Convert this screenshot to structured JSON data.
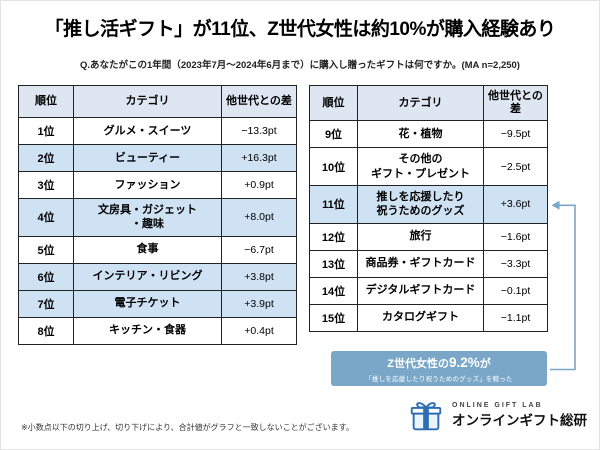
{
  "title": "「推し活ギフト」が11位、Z世代女性は約10%が購入経験あり",
  "subtitle": "Q.あなたがこの1年間（2023年7月～2024年6月まで）に購入し贈ったギフトは何ですか。(MA n=2,250)",
  "chart_data": {
    "type": "table",
    "columns": [
      "順位",
      "カテゴリ",
      "他世代との差"
    ],
    "left_rows": [
      {
        "rank": "1位",
        "category": "グルメ・スイーツ",
        "diff": "−13.3pt",
        "highlight": false
      },
      {
        "rank": "2位",
        "category": "ビューティー",
        "diff": "+16.3pt",
        "highlight": true
      },
      {
        "rank": "3位",
        "category": "ファッション",
        "diff": "+0.9pt",
        "highlight": false
      },
      {
        "rank": "4位",
        "category": "文房具・ガジェット\n・趣味",
        "diff": "+8.0pt",
        "highlight": true
      },
      {
        "rank": "5位",
        "category": "食事",
        "diff": "−6.7pt",
        "highlight": false
      },
      {
        "rank": "6位",
        "category": "インテリア・リビング",
        "diff": "+3.8pt",
        "highlight": true
      },
      {
        "rank": "7位",
        "category": "電子チケット",
        "diff": "+3.9pt",
        "highlight": true
      },
      {
        "rank": "8位",
        "category": "キッチン・食器",
        "diff": "+0.4pt",
        "highlight": false
      }
    ],
    "right_rows": [
      {
        "rank": "9位",
        "category": "花・植物",
        "diff": "−9.5pt",
        "highlight": false
      },
      {
        "rank": "10位",
        "category": "その他の\nギフト・プレゼント",
        "diff": "−2.5pt",
        "highlight": false
      },
      {
        "rank": "11位",
        "category": "推しを応援したり\n祝うためのグッズ",
        "diff": "+3.6pt",
        "highlight": true
      },
      {
        "rank": "12位",
        "category": "旅行",
        "diff": "−1.6pt",
        "highlight": false
      },
      {
        "rank": "13位",
        "category": "商品券・ギフトカード",
        "diff": "−3.3pt",
        "highlight": false
      },
      {
        "rank": "14位",
        "category": "デジタルギフトカード",
        "diff": "−0.1pt",
        "highlight": false
      },
      {
        "rank": "15位",
        "category": "カタログギフト",
        "diff": "−1.1pt",
        "highlight": false
      }
    ]
  },
  "callout": {
    "prefix": "Z世代女性の",
    "value": "9.2%",
    "suffix": "が",
    "sub": "「推しを応援したり祝うためのグッズ」を贈った"
  },
  "footnote": "※小数点以下の切り上げ、切り下げにより、合計値がグラフと一致しないことがございます。",
  "logo": {
    "name": "ONLINE GIFT LAB",
    "subname": "オンラインギフト総研"
  },
  "colors": {
    "header_bg": "#dde6f1",
    "highlight_bg": "#cfe2f3",
    "callout_bg": "#7aa7c7",
    "logo_blue": "#2e6db4"
  }
}
